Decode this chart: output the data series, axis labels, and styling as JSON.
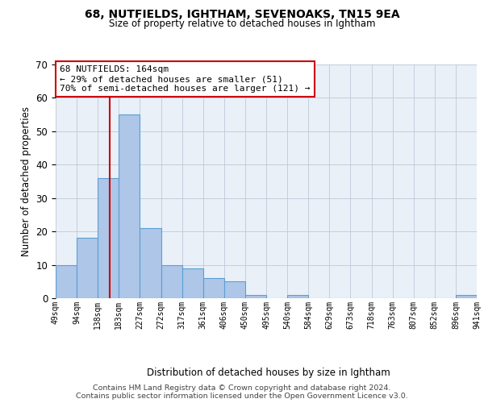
{
  "title1": "68, NUTFIELDS, IGHTHAM, SEVENOAKS, TN15 9EA",
  "title2": "Size of property relative to detached houses in Ightham",
  "xlabel": "Distribution of detached houses by size in Ightham",
  "ylabel": "Number of detached properties",
  "bins": [
    "49sqm",
    "94sqm",
    "138sqm",
    "183sqm",
    "227sqm",
    "272sqm",
    "317sqm",
    "361sqm",
    "406sqm",
    "450sqm",
    "495sqm",
    "540sqm",
    "584sqm",
    "629sqm",
    "673sqm",
    "718sqm",
    "763sqm",
    "807sqm",
    "852sqm",
    "896sqm",
    "941sqm"
  ],
  "values": [
    10,
    18,
    36,
    55,
    21,
    10,
    9,
    6,
    5,
    1,
    0,
    1,
    0,
    0,
    0,
    0,
    0,
    0,
    0,
    1
  ],
  "bar_color": "#aec6e8",
  "bar_edge_color": "#5a9fd4",
  "vline_color": "#cc0000",
  "annotation_text": "68 NUTFIELDS: 164sqm\n← 29% of detached houses are smaller (51)\n70% of semi-detached houses are larger (121) →",
  "ylim": [
    0,
    70
  ],
  "yticks": [
    0,
    10,
    20,
    30,
    40,
    50,
    60,
    70
  ],
  "footer1": "Contains HM Land Registry data © Crown copyright and database right 2024.",
  "footer2": "Contains public sector information licensed under the Open Government Licence v3.0.",
  "plot_bg_color": "#eaf0f8"
}
